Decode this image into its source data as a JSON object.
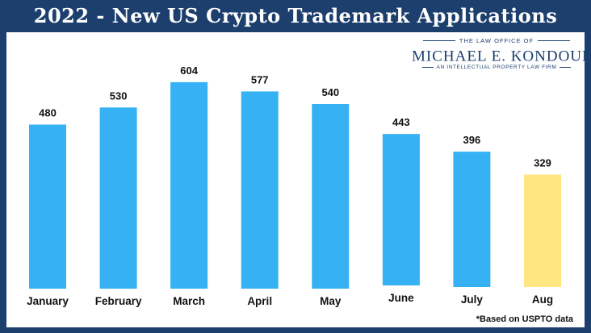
{
  "title": "2022 - New US Crypto Trademark Applications",
  "logo": {
    "top": "THE LAW OFFICE OF",
    "name": "MICHAEL E. KONDOUDIS",
    "registered": "®",
    "tagline": "AN INTELLECTUAL PROPERTY LAW FIRM"
  },
  "footnote": "*Based on USPTO data",
  "colors": {
    "frame": "#1d3f6e",
    "bar": "#36b1f4",
    "bar_highlight": "#ffe680"
  },
  "chart_data": {
    "type": "bar",
    "title": "2022 - New US Crypto Trademark Applications",
    "xlabel": "",
    "ylabel": "",
    "categories": [
      "January",
      "February",
      "March",
      "April",
      "May",
      "June",
      "July",
      "Aug"
    ],
    "values": [
      480,
      530,
      604,
      577,
      540,
      443,
      396,
      329
    ],
    "value_labels": [
      "480",
      "530",
      "604",
      "577",
      "540",
      "443",
      "396",
      "329"
    ],
    "highlighted_category": "Aug",
    "grid": false,
    "legend": "none"
  }
}
